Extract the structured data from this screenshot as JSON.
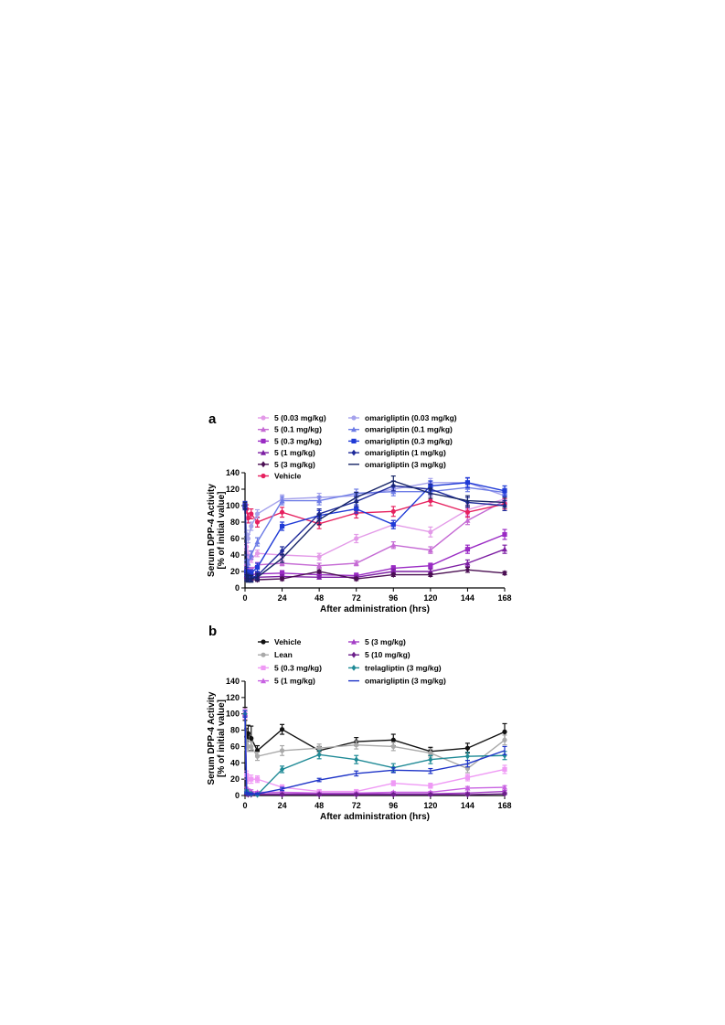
{
  "figure": {
    "panels": [
      {
        "label": "a"
      },
      {
        "label": "b"
      }
    ]
  },
  "chart_data": [
    {
      "type": "line",
      "panel": "a",
      "ylabel_line1": "Serum DPP-4 Activity",
      "ylabel_line2": "[% of initial value]",
      "xlabel": "After administration (hrs)",
      "xlim": [
        0,
        168
      ],
      "ylim": [
        0,
        140
      ],
      "xticks": [
        0,
        24,
        48,
        72,
        96,
        120,
        144,
        168
      ],
      "yticks": [
        0,
        20,
        40,
        60,
        80,
        100,
        120,
        140
      ],
      "legend": [
        [
          "5 (0.03 mg/kg)",
          "5 (0.1 mg/kg)",
          "5 (0.3 mg/kg)",
          "5 (1 mg/kg)",
          "5 (3 mg/kg)",
          "Vehicle"
        ],
        [
          "omarigliptin (0.03 mg/kg)",
          "omarigliptin (0.1 mg/kg)",
          "omarigliptin (0.3 mg/kg)",
          "omarigliptin (1 mg/kg)",
          "omarigliptin (3 mg/kg)"
        ]
      ],
      "series": [
        {
          "name": "5 (0.03 mg/kg)",
          "color": "#e39ae8",
          "marker": "circle",
          "x": [
            0,
            1,
            2,
            4,
            8,
            24,
            48,
            72,
            96,
            120,
            144,
            168
          ],
          "y": [
            100,
            50,
            40,
            35,
            42,
            40,
            38,
            60,
            77,
            68,
            95,
            108
          ],
          "err": [
            4,
            4,
            4,
            4,
            4,
            4,
            4,
            5,
            5,
            6,
            6,
            5
          ]
        },
        {
          "name": "5 (0.1 mg/kg)",
          "color": "#c56ad4",
          "marker": "triangle",
          "x": [
            0,
            1,
            2,
            4,
            8,
            24,
            48,
            72,
            96,
            120,
            144,
            168
          ],
          "y": [
            100,
            30,
            25,
            22,
            28,
            30,
            27,
            30,
            52,
            46,
            82,
            106
          ],
          "err": [
            3,
            3,
            3,
            3,
            3,
            3,
            3,
            3,
            4,
            4,
            5,
            5
          ]
        },
        {
          "name": "5 (0.3 mg/kg)",
          "color": "#9a2bc4",
          "marker": "square",
          "x": [
            0,
            1,
            2,
            4,
            8,
            24,
            48,
            72,
            96,
            120,
            144,
            168
          ],
          "y": [
            100,
            20,
            18,
            16,
            17,
            18,
            16,
            15,
            24,
            27,
            47,
            65
          ],
          "err": [
            3,
            3,
            3,
            3,
            3,
            3,
            3,
            3,
            3,
            3,
            5,
            6
          ]
        },
        {
          "name": "5 (1 mg/kg)",
          "color": "#7d1fa3",
          "marker": "triangle",
          "x": [
            0,
            1,
            2,
            4,
            8,
            24,
            48,
            72,
            96,
            120,
            144,
            168
          ],
          "y": [
            100,
            15,
            14,
            13,
            13,
            14,
            13,
            13,
            20,
            20,
            30,
            47
          ],
          "err": [
            3,
            3,
            2,
            2,
            2,
            2,
            2,
            2,
            3,
            3,
            4,
            5
          ]
        },
        {
          "name": "5 (3 mg/kg)",
          "color": "#4a0e52",
          "marker": "diamond",
          "x": [
            0,
            1,
            2,
            4,
            8,
            24,
            48,
            72,
            96,
            120,
            144,
            168
          ],
          "y": [
            100,
            12,
            11,
            10,
            10,
            11,
            20,
            11,
            16,
            16,
            22,
            18
          ],
          "err": [
            2,
            2,
            2,
            2,
            2,
            2,
            2,
            2,
            2,
            2,
            3,
            2
          ]
        },
        {
          "name": "Vehicle",
          "color": "#e6215f",
          "marker": "circle",
          "x": [
            0,
            1,
            2,
            4,
            8,
            24,
            48,
            72,
            96,
            120,
            144,
            168
          ],
          "y": [
            100,
            96,
            85,
            90,
            80,
            92,
            78,
            91,
            93,
            106,
            92,
            102
          ],
          "err": [
            5,
            5,
            6,
            6,
            6,
            6,
            6,
            6,
            6,
            6,
            6,
            6
          ]
        },
        {
          "name": "omarigliptin (0.03 mg/kg)",
          "color": "#a5a2ec",
          "marker": "circle",
          "x": [
            0,
            1,
            2,
            4,
            8,
            24,
            48,
            72,
            96,
            120,
            144,
            168
          ],
          "y": [
            100,
            65,
            60,
            75,
            90,
            108,
            110,
            112,
            120,
            128,
            128,
            112
          ],
          "err": [
            5,
            5,
            5,
            5,
            5,
            5,
            5,
            5,
            5,
            5,
            5,
            5
          ]
        },
        {
          "name": "omarigliptin (0.1 mg/kg)",
          "color": "#6d7ce6",
          "marker": "triangle",
          "x": [
            0,
            1,
            2,
            4,
            8,
            24,
            48,
            72,
            96,
            120,
            144,
            168
          ],
          "y": [
            100,
            35,
            30,
            40,
            56,
            106,
            106,
            115,
            117,
            117,
            122,
            116
          ],
          "err": [
            5,
            5,
            5,
            5,
            5,
            5,
            5,
            5,
            5,
            5,
            5,
            5
          ]
        },
        {
          "name": "omarigliptin (0.3 mg/kg)",
          "color": "#1f3ad6",
          "marker": "square",
          "x": [
            0,
            1,
            2,
            4,
            8,
            24,
            48,
            72,
            96,
            120,
            144,
            168
          ],
          "y": [
            100,
            20,
            17,
            18,
            25,
            75,
            88,
            96,
            77,
            124,
            128,
            118
          ],
          "err": [
            5,
            5,
            4,
            4,
            5,
            5,
            6,
            5,
            5,
            6,
            6,
            6
          ]
        },
        {
          "name": "omarigliptin (1 mg/kg)",
          "color": "#1e2a9a",
          "marker": "diamond",
          "x": [
            0,
            1,
            2,
            4,
            8,
            24,
            48,
            72,
            96,
            120,
            144,
            168
          ],
          "y": [
            100,
            14,
            13,
            12,
            15,
            45,
            90,
            105,
            124,
            120,
            104,
            100
          ],
          "err": [
            4,
            4,
            4,
            4,
            4,
            5,
            6,
            6,
            6,
            6,
            6,
            6
          ]
        },
        {
          "name": "omarigliptin (3 mg/kg)",
          "color": "#162466",
          "marker": "none",
          "x": [
            0,
            1,
            2,
            4,
            8,
            24,
            48,
            72,
            96,
            120,
            144,
            168
          ],
          "y": [
            100,
            12,
            11,
            11,
            13,
            36,
            83,
            110,
            130,
            115,
            106,
            104
          ],
          "err": [
            4,
            4,
            4,
            4,
            4,
            5,
            6,
            6,
            6,
            6,
            6,
            6
          ]
        }
      ]
    },
    {
      "type": "line",
      "panel": "b",
      "ylabel_line1": "Serum DPP-4 Activity",
      "ylabel_line2": "[% of initial value]",
      "xlabel": "After administration (hrs)",
      "xlim": [
        0,
        168
      ],
      "ylim": [
        0,
        140
      ],
      "xticks": [
        0,
        24,
        48,
        72,
        96,
        120,
        144,
        168
      ],
      "yticks": [
        0,
        20,
        40,
        60,
        80,
        100,
        120,
        140
      ],
      "legend": [
        [
          "Vehicle",
          "Lean",
          "5 (0.3 mg/kg)",
          "5 (1 mg/kg)"
        ],
        [
          "5 (3 mg/kg)",
          "5 (10 mg/kg)",
          "trelagliptin (3 mg/kg)",
          "omarigliptin (3 mg/kg)"
        ]
      ],
      "series": [
        {
          "name": "Vehicle",
          "color": "#111111",
          "marker": "circle",
          "x": [
            0,
            1,
            2,
            4,
            8,
            24,
            48,
            72,
            96,
            120,
            144,
            168
          ],
          "y": [
            100,
            72,
            76,
            70,
            55,
            81,
            55,
            66,
            68,
            54,
            58,
            78
          ],
          "err": [
            8,
            10,
            10,
            15,
            6,
            6,
            5,
            5,
            7,
            5,
            6,
            10
          ]
        },
        {
          "name": "Lean",
          "color": "#a9a9a9",
          "marker": "circle",
          "x": [
            0,
            1,
            2,
            4,
            8,
            24,
            48,
            72,
            96,
            120,
            144,
            168
          ],
          "y": [
            100,
            62,
            60,
            60,
            48,
            55,
            58,
            62,
            60,
            52,
            33,
            68
          ],
          "err": [
            6,
            6,
            6,
            6,
            5,
            6,
            5,
            5,
            5,
            5,
            5,
            6
          ]
        },
        {
          "name": "5 (0.3 mg/kg)",
          "color": "#ef9af5",
          "marker": "square",
          "x": [
            0,
            1,
            2,
            4,
            8,
            24,
            48,
            72,
            96,
            120,
            144,
            168
          ],
          "y": [
            100,
            25,
            20,
            20,
            20,
            10,
            5,
            5,
            15,
            12,
            22,
            32
          ],
          "err": [
            6,
            5,
            5,
            5,
            4,
            3,
            2,
            2,
            3,
            3,
            4,
            5
          ]
        },
        {
          "name": "5 (1 mg/kg)",
          "color": "#c862e2",
          "marker": "triangle",
          "x": [
            0,
            1,
            2,
            4,
            8,
            24,
            48,
            72,
            96,
            120,
            144,
            168
          ],
          "y": [
            100,
            8,
            6,
            5,
            4,
            4,
            3,
            3,
            4,
            4,
            9,
            10
          ],
          "err": [
            4,
            2,
            2,
            2,
            1,
            1,
            1,
            1,
            1,
            1,
            2,
            2
          ]
        },
        {
          "name": "5 (3 mg/kg)",
          "color": "#a43ec6",
          "marker": "triangle",
          "x": [
            0,
            1,
            2,
            4,
            8,
            24,
            48,
            72,
            96,
            120,
            144,
            168
          ],
          "y": [
            100,
            4,
            3,
            3,
            2,
            2,
            2,
            2,
            2,
            2,
            3,
            5
          ],
          "err": [
            4,
            1,
            1,
            1,
            1,
            1,
            1,
            1,
            1,
            1,
            1,
            1
          ]
        },
        {
          "name": "5 (10 mg/kg)",
          "color": "#6c1f8a",
          "marker": "diamond",
          "x": [
            0,
            1,
            2,
            4,
            8,
            24,
            48,
            72,
            96,
            120,
            144,
            168
          ],
          "y": [
            100,
            2,
            1,
            1,
            1,
            1,
            1,
            1,
            1,
            1,
            1,
            2
          ],
          "err": [
            4,
            1,
            1,
            1,
            1,
            1,
            1,
            1,
            1,
            1,
            1,
            1
          ]
        },
        {
          "name": "trelagliptin (3 mg/kg)",
          "color": "#1f8a96",
          "marker": "diamond",
          "x": [
            0,
            1,
            2,
            4,
            8,
            24,
            48,
            72,
            96,
            120,
            144,
            168
          ],
          "y": [
            100,
            5,
            3,
            2,
            1,
            32,
            50,
            44,
            34,
            44,
            48,
            49
          ],
          "err": [
            4,
            2,
            1,
            1,
            1,
            4,
            5,
            5,
            5,
            5,
            5,
            5
          ]
        },
        {
          "name": "omarigliptin (3 mg/kg)",
          "color": "#1f35c8",
          "marker": "none",
          "x": [
            0,
            1,
            2,
            4,
            8,
            24,
            48,
            72,
            96,
            120,
            144,
            168
          ],
          "y": [
            100,
            3,
            2,
            2,
            2,
            8,
            19,
            27,
            31,
            30,
            39,
            55
          ],
          "err": [
            4,
            1,
            1,
            1,
            1,
            2,
            2,
            3,
            3,
            3,
            4,
            5
          ]
        }
      ]
    }
  ]
}
